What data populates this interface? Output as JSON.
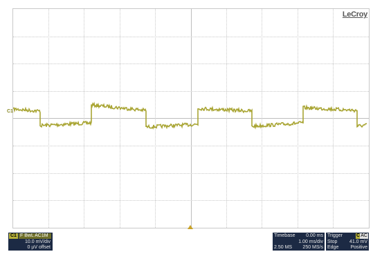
{
  "top_banner_text": "",
  "scope": {
    "brand": "LeCroy",
    "channel_marker": "C1",
    "trace_color": "#a9a534"
  },
  "channel": {
    "name": "C1",
    "flags": "F  BwL AC1M",
    "vdiv": "10.0 mV/div",
    "offset": "0 µV offset"
  },
  "timebase": {
    "label": "Timebase",
    "delay": "0.00 ms",
    "tdiv": "1.00 ms/div",
    "samples": "2.50 MS",
    "rate": "250 MS/s"
  },
  "trigger": {
    "label": "Trigger",
    "source": "C1",
    "coupling": "AC",
    "mode": "Stop",
    "level": "41.0 mV",
    "type": "Edge",
    "slope": "Positive"
  },
  "colors": {
    "panel_bg": "#1c2a44",
    "channel_yellow": "#b5b03a"
  }
}
